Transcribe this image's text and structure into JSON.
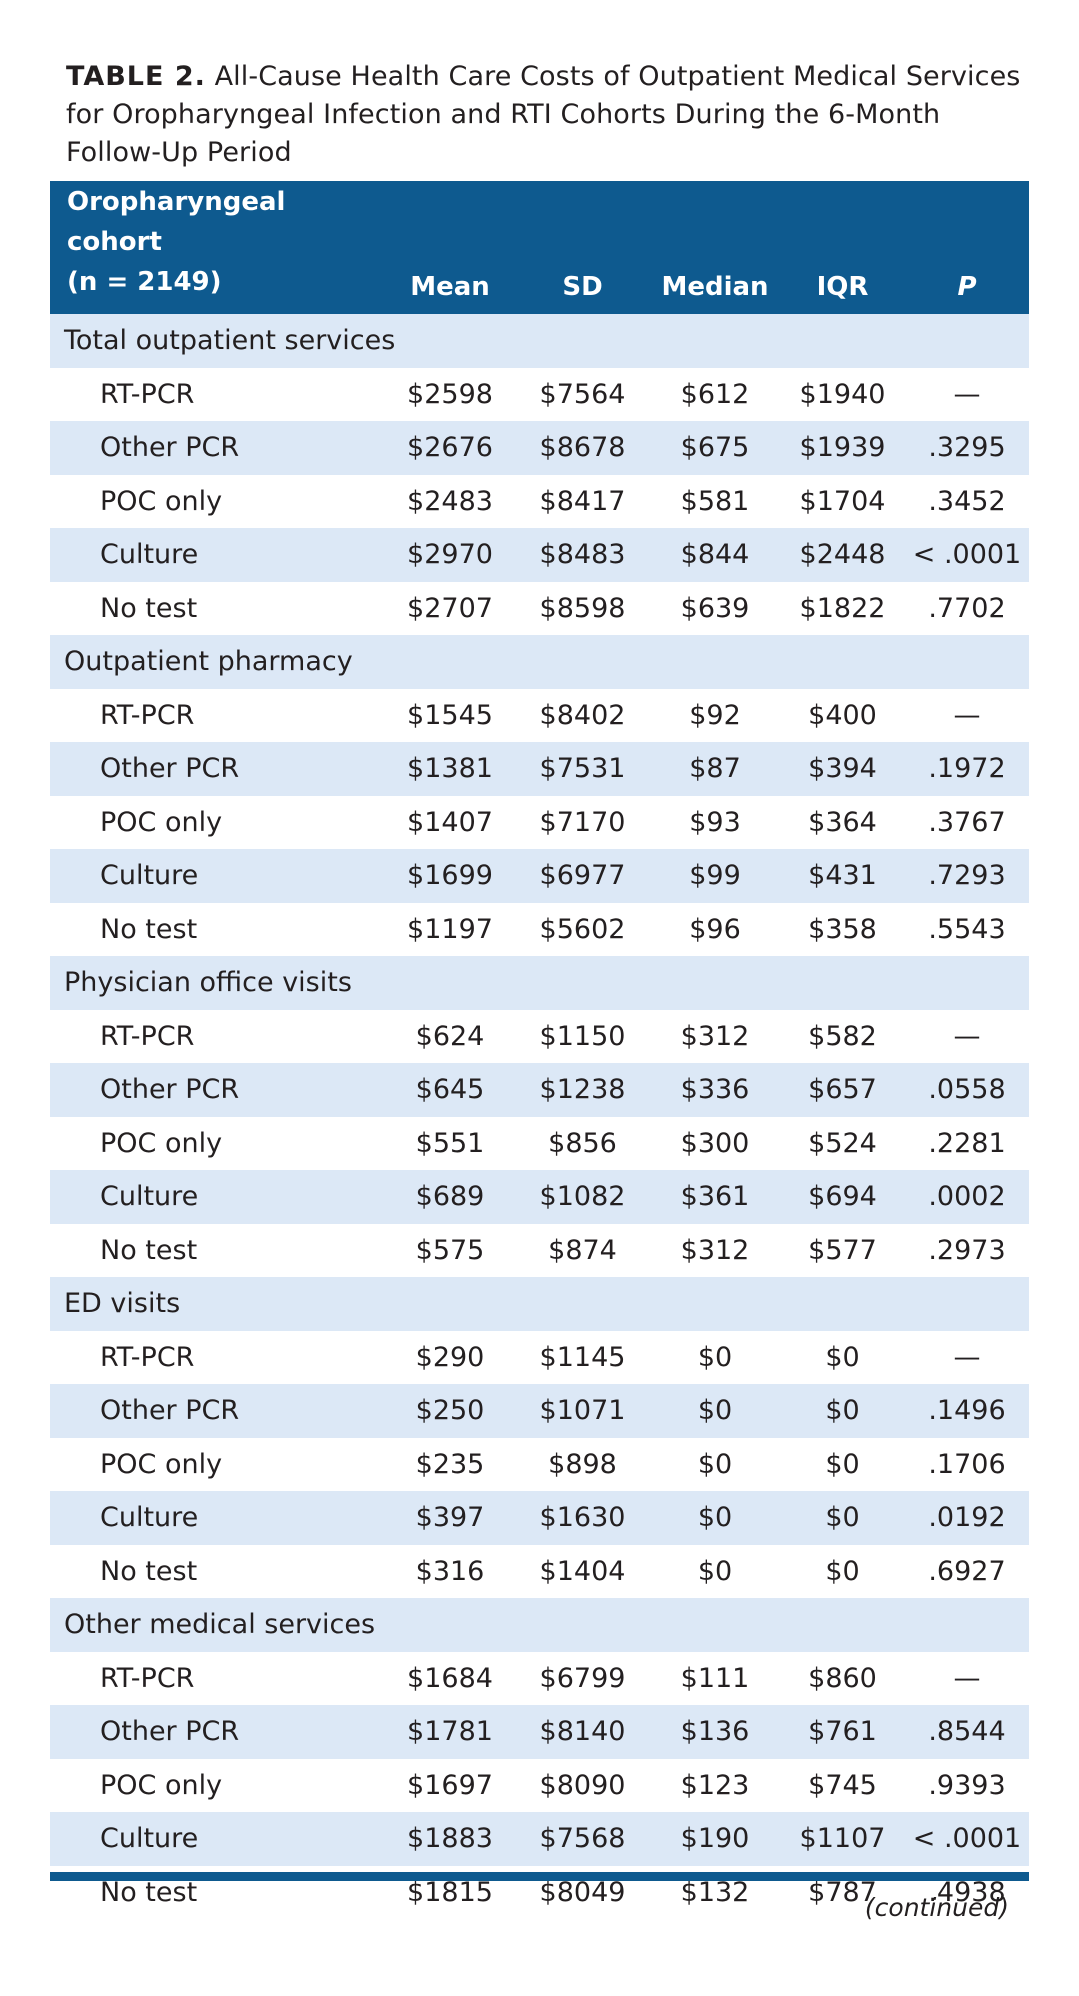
{
  "caption": {
    "label": "TABLE 2.",
    "text": " All-Cause Health Care Costs of Outpatient Medical Services for Oropharyngeal Infection and RTI Cohorts During the 6-Month Follow-Up Period"
  },
  "table": {
    "headers": {
      "cohort_line1": "Oropharyngeal cohort",
      "cohort_line2": "(n = 2149)",
      "mean": "Mean",
      "sd": "SD",
      "median": "Median",
      "iqr": "IQR",
      "p": "P"
    },
    "sections": [
      {
        "label": "Total outpatient services",
        "rows": [
          {
            "name": "RT-PCR",
            "mean": "$2598",
            "sd": "$7564",
            "median": "$612",
            "iqr": "$1940",
            "p": "—"
          },
          {
            "name": "Other PCR",
            "mean": "$2676",
            "sd": "$8678",
            "median": "$675",
            "iqr": "$1939",
            "p": ".3295"
          },
          {
            "name": "POC only",
            "mean": "$2483",
            "sd": "$8417",
            "median": "$581",
            "iqr": "$1704",
            "p": ".3452"
          },
          {
            "name": "Culture",
            "mean": "$2970",
            "sd": "$8483",
            "median": "$844",
            "iqr": "$2448",
            "p": "< .0001"
          },
          {
            "name": "No test",
            "mean": "$2707",
            "sd": "$8598",
            "median": "$639",
            "iqr": "$1822",
            "p": ".7702"
          }
        ]
      },
      {
        "label": "Outpatient pharmacy",
        "rows": [
          {
            "name": "RT-PCR",
            "mean": "$1545",
            "sd": "$8402",
            "median": "$92",
            "iqr": "$400",
            "p": "—"
          },
          {
            "name": "Other PCR",
            "mean": "$1381",
            "sd": "$7531",
            "median": "$87",
            "iqr": "$394",
            "p": ".1972"
          },
          {
            "name": "POC only",
            "mean": "$1407",
            "sd": "$7170",
            "median": "$93",
            "iqr": "$364",
            "p": ".3767"
          },
          {
            "name": "Culture",
            "mean": "$1699",
            "sd": "$6977",
            "median": "$99",
            "iqr": "$431",
            "p": ".7293"
          },
          {
            "name": "No test",
            "mean": "$1197",
            "sd": "$5602",
            "median": "$96",
            "iqr": "$358",
            "p": ".5543"
          }
        ]
      },
      {
        "label": "Physician office visits",
        "rows": [
          {
            "name": "RT-PCR",
            "mean": "$624",
            "sd": "$1150",
            "median": "$312",
            "iqr": "$582",
            "p": "—"
          },
          {
            "name": "Other PCR",
            "mean": "$645",
            "sd": "$1238",
            "median": "$336",
            "iqr": "$657",
            "p": ".0558"
          },
          {
            "name": "POC only",
            "mean": "$551",
            "sd": "$856",
            "median": "$300",
            "iqr": "$524",
            "p": ".2281"
          },
          {
            "name": "Culture",
            "mean": "$689",
            "sd": "$1082",
            "median": "$361",
            "iqr": "$694",
            "p": ".0002"
          },
          {
            "name": "No test",
            "mean": "$575",
            "sd": "$874",
            "median": "$312",
            "iqr": "$577",
            "p": ".2973"
          }
        ]
      },
      {
        "label": "ED visits",
        "rows": [
          {
            "name": "RT-PCR",
            "mean": "$290",
            "sd": "$1145",
            "median": "$0",
            "iqr": "$0",
            "p": "—"
          },
          {
            "name": "Other PCR",
            "mean": "$250",
            "sd": "$1071",
            "median": "$0",
            "iqr": "$0",
            "p": ".1496"
          },
          {
            "name": "POC only",
            "mean": "$235",
            "sd": "$898",
            "median": "$0",
            "iqr": "$0",
            "p": ".1706"
          },
          {
            "name": "Culture",
            "mean": "$397",
            "sd": "$1630",
            "median": "$0",
            "iqr": "$0",
            "p": ".0192"
          },
          {
            "name": "No test",
            "mean": "$316",
            "sd": "$1404",
            "median": "$0",
            "iqr": "$0",
            "p": ".6927"
          }
        ]
      },
      {
        "label": "Other medical services",
        "rows": [
          {
            "name": "RT-PCR",
            "mean": "$1684",
            "sd": "$6799",
            "median": "$111",
            "iqr": "$860",
            "p": "—"
          },
          {
            "name": "Other PCR",
            "mean": "$1781",
            "sd": "$8140",
            "median": "$136",
            "iqr": "$761",
            "p": ".8544"
          },
          {
            "name": "POC only",
            "mean": "$1697",
            "sd": "$8090",
            "median": "$123",
            "iqr": "$745",
            "p": ".9393"
          },
          {
            "name": "Culture",
            "mean": "$1883",
            "sd": "$7568",
            "median": "$190",
            "iqr": "$1107",
            "p": "< .0001"
          },
          {
            "name": "No test",
            "mean": "$1815",
            "sd": "$8049",
            "median": "$132",
            "iqr": "$787",
            "p": ".4938"
          }
        ]
      }
    ]
  },
  "footer": {
    "continued": "(continued)"
  }
}
